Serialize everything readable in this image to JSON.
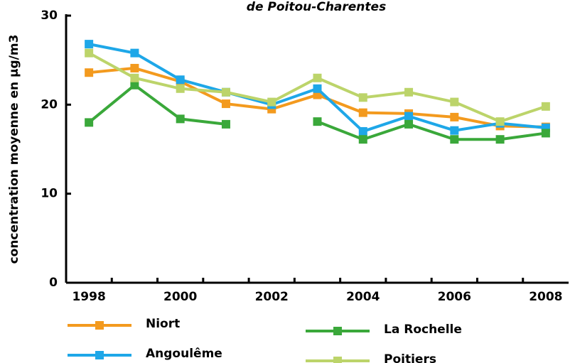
{
  "chart_data": {
    "type": "line",
    "title": "de Poitou-Charentes",
    "y_label": "concentration moyenne en µg/m3",
    "categories": [
      "1998",
      null,
      "2000",
      null,
      "2002",
      null,
      "2004",
      null,
      "2006",
      null,
      "2008"
    ],
    "ylim": [
      0,
      30
    ],
    "yticks": [
      0,
      10,
      20,
      30
    ],
    "grid": false,
    "series": [
      {
        "name": "Niort",
        "color": "#f39a1e",
        "values": [
          23.6,
          24.1,
          22.6,
          20.1,
          19.5,
          21.1,
          19.1,
          19.0,
          18.6,
          17.6,
          17.5
        ]
      },
      {
        "name": "Angoulême",
        "color": "#1ea7e8",
        "values": [
          26.8,
          25.8,
          22.8,
          21.4,
          20.0,
          21.8,
          17.0,
          18.7,
          17.1,
          17.9,
          17.4
        ]
      },
      {
        "name": "La Rochelle",
        "color": "#3aa83a",
        "values": [
          18.0,
          22.2,
          18.4,
          17.8,
          null,
          18.1,
          16.1,
          17.8,
          16.1,
          16.1,
          16.8
        ]
      },
      {
        "name": "Poitiers",
        "color": "#bcd46a",
        "values": [
          25.8,
          23.0,
          21.8,
          21.4,
          20.3,
          23.0,
          20.8,
          21.4,
          20.3,
          18.1,
          19.8
        ]
      }
    ]
  }
}
